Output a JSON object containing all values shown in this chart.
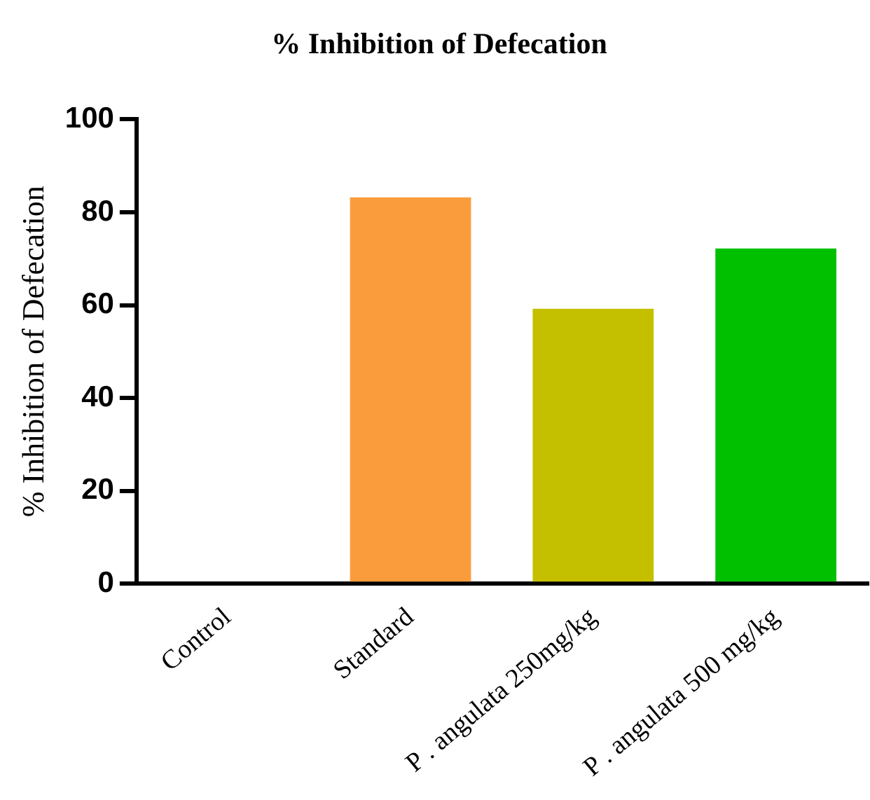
{
  "chart_data": {
    "type": "bar",
    "title": "% Inhibition of Defecation",
    "ylabel": "% Inhibition of Defecation",
    "categories": [
      "Control",
      "Standard",
      "P . angulata 250mg/kg",
      "P . angulata 500 mg/kg"
    ],
    "values": [
      0,
      83.2,
      59.2,
      72.2
    ],
    "colors": [
      "#ffffff",
      "#fa9c3c",
      "#c4c000",
      "#00c000"
    ],
    "ylim": [
      0,
      100
    ],
    "yticks": [
      0,
      20,
      40,
      60,
      80,
      100
    ],
    "grid": false,
    "legend": false
  }
}
